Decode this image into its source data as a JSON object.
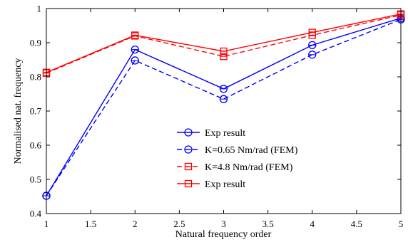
{
  "chart_data": {
    "type": "line",
    "title": "",
    "xlabel": "Natural frequency order",
    "ylabel": "Normalised nat. frequency",
    "xlim": [
      1,
      5
    ],
    "ylim": [
      0.4,
      1
    ],
    "xticks": [
      "1",
      "1.5",
      "2",
      "2.5",
      "3",
      "3.5",
      "4",
      "4.5",
      "5"
    ],
    "yticks": [
      "0.4",
      "0.5",
      "0.6",
      "0.7",
      "0.8",
      "0.9",
      "1"
    ],
    "x": [
      1,
      2,
      3,
      4,
      5
    ],
    "grid": false,
    "legend_position": "center-right",
    "series": [
      {
        "name": "Exp result",
        "values": [
          0.452,
          0.88,
          0.765,
          0.893,
          0.972
        ],
        "color": "#0000ff",
        "dash": "solid",
        "marker": "circle"
      },
      {
        "name": "K=0.65 Nm/rad (FEM)",
        "values": [
          0.452,
          0.848,
          0.735,
          0.865,
          0.968
        ],
        "color": "#0000ff",
        "dash": "dashed",
        "marker": "circle"
      },
      {
        "name": "K=4.8 Nm/rad (FEM)",
        "values": [
          0.811,
          0.92,
          0.86,
          0.922,
          0.981
        ],
        "color": "#ff0000",
        "dash": "dashed",
        "marker": "square"
      },
      {
        "name": "Exp result",
        "values": [
          0.813,
          0.922,
          0.875,
          0.93,
          0.984
        ],
        "color": "#ff0000",
        "dash": "solid",
        "marker": "square"
      }
    ]
  }
}
